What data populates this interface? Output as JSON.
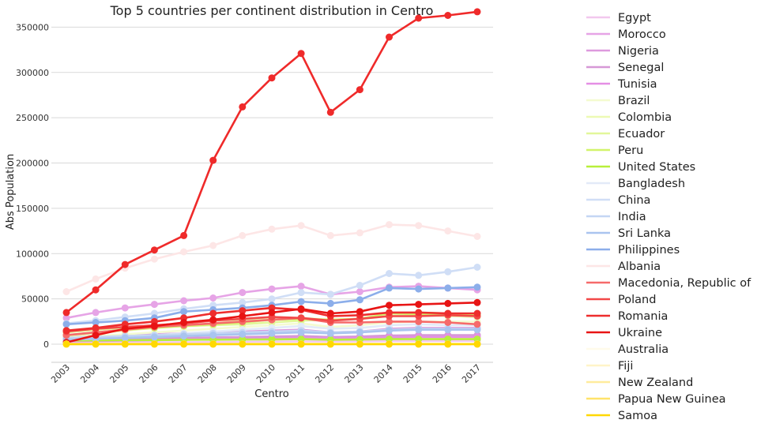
{
  "chart_data": {
    "type": "line",
    "title": "Top 5 countries per continent distribution in Centro",
    "xlabel": "Centro",
    "ylabel": "Abs Population",
    "x": [
      "2003",
      "2004",
      "2005",
      "2006",
      "2007",
      "2008",
      "2009",
      "2010",
      "2011",
      "2012",
      "2013",
      "2014",
      "2015",
      "2016",
      "2017"
    ],
    "ylim": [
      -20000,
      380000
    ],
    "yticks": [
      0,
      50000,
      100000,
      150000,
      200000,
      250000,
      300000,
      350000
    ],
    "ytick_labels": [
      "0",
      "50000",
      "100000",
      "150000",
      "200000",
      "250000",
      "300000",
      "350000"
    ],
    "grid": "horizontal",
    "legend_position": "right, outside plot",
    "series": [
      {
        "name": "Egypt",
        "color": "#f2c8ee",
        "values": [
          1500,
          1700,
          1900,
          2100,
          2300,
          2500,
          2700,
          2900,
          3100,
          3000,
          3200,
          3400,
          3500,
          3600,
          3700
        ]
      },
      {
        "name": "Morocco",
        "color": "#e6a4e6",
        "values": [
          29000,
          35000,
          40000,
          44000,
          48000,
          51000,
          57000,
          61000,
          64000,
          55000,
          58000,
          63000,
          64000,
          62000,
          60000
        ]
      },
      {
        "name": "Nigeria",
        "color": "#dd99dd",
        "values": [
          8000,
          9000,
          10000,
          11000,
          12000,
          13000,
          14000,
          15000,
          16000,
          13000,
          14000,
          17000,
          18000,
          18000,
          18000
        ]
      },
      {
        "name": "Senegal",
        "color": "#d698d6",
        "values": [
          5000,
          5500,
          6000,
          6500,
          7000,
          7500,
          8000,
          8500,
          9000,
          8000,
          8500,
          9500,
          10000,
          10000,
          10000
        ]
      },
      {
        "name": "Tunisia",
        "color": "#e58fe5",
        "values": [
          3000,
          3500,
          4000,
          4500,
          5000,
          5500,
          6000,
          6500,
          7000,
          6500,
          7000,
          7500,
          8000,
          8000,
          8000
        ]
      },
      {
        "name": "Brazil",
        "color": "#f4fbd0",
        "values": [
          7000,
          9000,
          11000,
          13000,
          15000,
          17000,
          19000,
          21000,
          23000,
          19000,
          21000,
          24000,
          25000,
          25000,
          25000
        ]
      },
      {
        "name": "Colombia",
        "color": "#edfab4",
        "values": [
          9000,
          12000,
          15000,
          18000,
          21000,
          23000,
          26000,
          28000,
          29000,
          27000,
          28000,
          31000,
          32000,
          31000,
          30000
        ]
      },
      {
        "name": "Ecuador",
        "color": "#e2f79a",
        "values": [
          13000,
          16000,
          18000,
          19000,
          20000,
          21000,
          22000,
          24000,
          26000,
          27000,
          28000,
          34000,
          35000,
          34000,
          33000
        ]
      },
      {
        "name": "Peru",
        "color": "#d2f46a",
        "values": [
          10000,
          13000,
          16000,
          18000,
          20000,
          22000,
          24000,
          27000,
          28000,
          27000,
          28000,
          34000,
          33000,
          33000,
          32000
        ]
      },
      {
        "name": "United States",
        "color": "#b8ef3a",
        "values": [
          4000,
          4200,
          4400,
          4600,
          4800,
          5000,
          5200,
          5400,
          5600,
          5000,
          5200,
          5600,
          5600,
          5600,
          5600
        ]
      },
      {
        "name": "Bangladesh",
        "color": "#e2eaf8",
        "values": [
          5000,
          6000,
          8000,
          10000,
          12000,
          14000,
          16000,
          18000,
          20000,
          17000,
          18000,
          21000,
          22000,
          21000,
          21000
        ]
      },
      {
        "name": "China",
        "color": "#d0def6",
        "values": [
          23000,
          26000,
          30000,
          34000,
          39000,
          43000,
          46000,
          50000,
          57000,
          55000,
          65000,
          78000,
          76000,
          80000,
          85000
        ]
      },
      {
        "name": "India",
        "color": "#c4d6f4",
        "values": [
          7000,
          8000,
          9000,
          10000,
          11000,
          12000,
          13000,
          14000,
          15000,
          13000,
          14000,
          16000,
          17000,
          17000,
          17000
        ]
      },
      {
        "name": "Sri Lanka",
        "color": "#a9c4ef",
        "values": [
          5000,
          6000,
          7000,
          8000,
          9000,
          10000,
          11000,
          12000,
          13000,
          12000,
          13000,
          15000,
          16000,
          16000,
          16000
        ]
      },
      {
        "name": "Philippines",
        "color": "#8caeea",
        "values": [
          22000,
          24000,
          26000,
          29000,
          36000,
          38000,
          40000,
          43000,
          47000,
          45000,
          49000,
          62000,
          61000,
          62000,
          63000
        ]
      },
      {
        "name": "Albania",
        "color": "#fde6e6",
        "values": [
          58000,
          72000,
          84000,
          94000,
          102000,
          109000,
          120000,
          127000,
          131000,
          120000,
          123000,
          132000,
          131000,
          125000,
          119000
        ]
      },
      {
        "name": "Macedonia, Republic of",
        "color": "#f66a6a",
        "values": [
          10000,
          13000,
          16000,
          19000,
          21000,
          23000,
          25000,
          27000,
          29000,
          24000,
          24000,
          25000,
          25000,
          24000,
          22000
        ]
      },
      {
        "name": "Poland",
        "color": "#f24848",
        "values": [
          14000,
          17000,
          19000,
          21000,
          23000,
          26000,
          28000,
          30000,
          29000,
          26000,
          28000,
          31000,
          31000,
          32000,
          31000
        ]
      },
      {
        "name": "Romania",
        "color": "#ee2d2d",
        "values": [
          15000,
          18000,
          22000,
          25000,
          29000,
          34000,
          37000,
          40000,
          38000,
          31000,
          32000,
          35000,
          35000,
          34000,
          34000
        ]
      },
      {
        "name": "Ukraine",
        "color": "#e81414",
        "values": [
          2000,
          10000,
          17000,
          20000,
          24000,
          27000,
          31000,
          35000,
          39000,
          34000,
          36000,
          43000,
          44000,
          45000,
          46000
        ]
      },
      {
        "name": "Australia",
        "color": "#fffbea",
        "values": [
          300,
          300,
          300,
          300,
          300,
          300,
          300,
          300,
          300,
          300,
          300,
          300,
          300,
          300,
          300
        ]
      },
      {
        "name": "Fiji",
        "color": "#fff4c8",
        "values": [
          250,
          250,
          250,
          250,
          250,
          250,
          250,
          250,
          250,
          250,
          250,
          250,
          250,
          250,
          250
        ]
      },
      {
        "name": "New Zealand",
        "color": "#ffec9c",
        "values": [
          200,
          200,
          200,
          200,
          200,
          200,
          200,
          200,
          200,
          200,
          200,
          200,
          200,
          200,
          200
        ]
      },
      {
        "name": "Papua New Guinea",
        "color": "#ffe36a",
        "values": [
          150,
          150,
          150,
          150,
          150,
          150,
          150,
          150,
          150,
          150,
          150,
          150,
          150,
          150,
          150
        ]
      },
      {
        "name": "Samoa",
        "color": "#ffd800",
        "values": [
          100,
          100,
          100,
          100,
          100,
          100,
          100,
          100,
          100,
          100,
          100,
          100,
          100,
          100,
          100
        ]
      },
      {
        "name": "",
        "color": "#ef2a2a",
        "values": [
          35000,
          60000,
          88000,
          104000,
          120000,
          203000,
          262000,
          294000,
          321000,
          256000,
          281000,
          339000,
          360000,
          363000,
          367000
        ]
      }
    ]
  }
}
